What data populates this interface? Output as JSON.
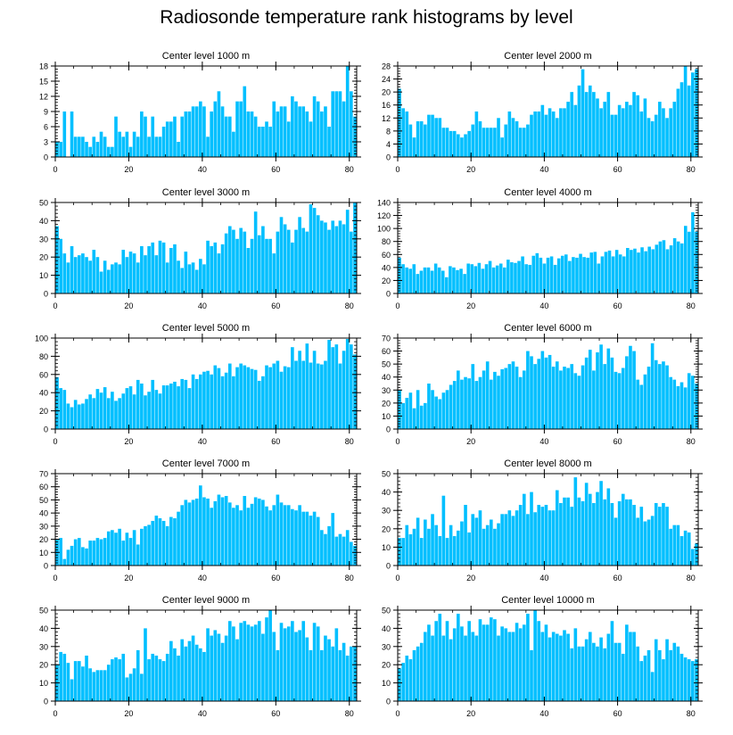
{
  "title": "Radiosonde temperature rank histograms by level",
  "colors": {
    "bar": "#00BFFF",
    "axis": "#000000",
    "background": "#FFFFFF"
  },
  "chart_data": [
    {
      "type": "bar",
      "title": "Center level 1000 m",
      "xlim": [
        0,
        82
      ],
      "ylim": [
        0,
        18
      ],
      "xticks": [
        0,
        20,
        40,
        60,
        80
      ],
      "yticks": [
        0,
        3,
        6,
        9,
        12,
        15,
        18
      ],
      "values": [
        3,
        3,
        9,
        0,
        9,
        4,
        4,
        4,
        3,
        2,
        4,
        3,
        5,
        4,
        2,
        2,
        8,
        5,
        4,
        5,
        2,
        5,
        4,
        9,
        8,
        4,
        8,
        4,
        4,
        6,
        7,
        7,
        8,
        3,
        8,
        9,
        9,
        10,
        10,
        11,
        10,
        4,
        9,
        11,
        13,
        10,
        8,
        8,
        5,
        11,
        11,
        14,
        9,
        9,
        8,
        6,
        6,
        7,
        6,
        11,
        9,
        10,
        10,
        7,
        12,
        11,
        10,
        10,
        9,
        7,
        12,
        11,
        9,
        10,
        6,
        13,
        13,
        13,
        11,
        18,
        13,
        8
      ]
    },
    {
      "type": "bar",
      "title": "Center level 2000 m",
      "xlim": [
        0,
        82
      ],
      "ylim": [
        0,
        28
      ],
      "xticks": [
        0,
        20,
        40,
        60,
        80
      ],
      "yticks": [
        0,
        4,
        8,
        12,
        16,
        20,
        24,
        28
      ],
      "values": [
        21,
        15,
        14,
        10,
        6,
        11,
        11,
        10,
        13,
        13,
        12,
        12,
        9,
        9,
        8,
        8,
        7,
        6,
        7,
        8,
        10,
        14,
        11,
        9,
        9,
        9,
        9,
        12,
        6,
        10,
        14,
        12,
        11,
        9,
        9,
        10,
        13,
        14,
        14,
        16,
        13,
        15,
        14,
        12,
        15,
        15,
        17,
        20,
        16,
        22,
        27,
        20,
        22,
        20,
        18,
        15,
        17,
        20,
        13,
        13,
        16,
        15,
        17,
        16,
        20,
        19,
        14,
        18,
        12,
        11,
        13,
        17,
        15,
        12,
        15,
        17,
        21,
        23,
        28,
        22,
        26,
        27
      ]
    },
    {
      "type": "bar",
      "title": "Center level 3000 m",
      "xlim": [
        0,
        82
      ],
      "ylim": [
        0,
        50
      ],
      "xticks": [
        0,
        20,
        40,
        60,
        80
      ],
      "yticks": [
        0,
        10,
        20,
        30,
        40,
        50
      ],
      "values": [
        37,
        30,
        22,
        17,
        26,
        20,
        21,
        22,
        20,
        18,
        24,
        20,
        12,
        18,
        13,
        16,
        17,
        16,
        24,
        20,
        23,
        22,
        17,
        26,
        21,
        26,
        28,
        21,
        29,
        28,
        17,
        25,
        27,
        18,
        14,
        23,
        16,
        17,
        13,
        19,
        16,
        29,
        26,
        28,
        22,
        27,
        33,
        37,
        35,
        30,
        36,
        34,
        25,
        30,
        45,
        32,
        37,
        30,
        30,
        22,
        34,
        42,
        38,
        35,
        28,
        35,
        42,
        36,
        34,
        49,
        47,
        43,
        40,
        39,
        35,
        40,
        37,
        40,
        38,
        46,
        34,
        50
      ]
    },
    {
      "type": "bar",
      "title": "Center level 4000 m",
      "xlim": [
        0,
        82
      ],
      "ylim": [
        0,
        140
      ],
      "xticks": [
        0,
        20,
        40,
        60,
        80
      ],
      "yticks": [
        0,
        20,
        40,
        60,
        80,
        100,
        120,
        140
      ],
      "values": [
        55,
        45,
        40,
        38,
        45,
        30,
        35,
        40,
        40,
        35,
        46,
        40,
        35,
        25,
        42,
        40,
        36,
        38,
        30,
        46,
        45,
        42,
        47,
        38,
        45,
        50,
        40,
        43,
        46,
        40,
        52,
        48,
        47,
        50,
        57,
        45,
        44,
        58,
        62,
        55,
        46,
        55,
        57,
        44,
        54,
        58,
        60,
        50,
        56,
        55,
        61,
        56,
        55,
        63,
        64,
        46,
        57,
        64,
        66,
        57,
        67,
        60,
        57,
        70,
        67,
        69,
        63,
        71,
        65,
        72,
        68,
        75,
        80,
        82,
        68,
        74,
        85,
        80,
        77,
        104,
        95,
        125,
        95
      ]
    },
    {
      "type": "bar",
      "title": "Center level 5000 m",
      "xlim": [
        0,
        82
      ],
      "ylim": [
        0,
        100
      ],
      "xticks": [
        0,
        20,
        40,
        60,
        80
      ],
      "yticks": [
        0,
        20,
        40,
        60,
        80,
        100
      ],
      "values": [
        57,
        45,
        43,
        28,
        24,
        32,
        27,
        28,
        33,
        38,
        34,
        44,
        40,
        46,
        34,
        41,
        31,
        34,
        39,
        45,
        47,
        38,
        54,
        50,
        37,
        41,
        54,
        43,
        39,
        48,
        48,
        50,
        52,
        47,
        55,
        54,
        45,
        60,
        55,
        60,
        63,
        64,
        60,
        70,
        67,
        58,
        62,
        72,
        58,
        68,
        72,
        70,
        68,
        66,
        65,
        53,
        58,
        70,
        68,
        72,
        75,
        63,
        69,
        68,
        90,
        75,
        86,
        75,
        94,
        73,
        86,
        72,
        71,
        75,
        98,
        90,
        93,
        72,
        86,
        99,
        93,
        82
      ]
    },
    {
      "type": "bar",
      "title": "Center level 6000 m",
      "xlim": [
        0,
        82
      ],
      "ylim": [
        0,
        70
      ],
      "xticks": [
        0,
        20,
        40,
        60,
        80
      ],
      "yticks": [
        0,
        10,
        20,
        30,
        40,
        50,
        60,
        70
      ],
      "values": [
        30,
        20,
        24,
        28,
        16,
        30,
        18,
        20,
        35,
        30,
        25,
        23,
        28,
        30,
        34,
        37,
        45,
        38,
        40,
        39,
        50,
        37,
        40,
        45,
        52,
        38,
        44,
        41,
        46,
        47,
        50,
        52,
        48,
        40,
        45,
        60,
        56,
        50,
        54,
        60,
        55,
        57,
        48,
        52,
        45,
        48,
        47,
        50,
        43,
        41,
        49,
        55,
        61,
        45,
        59,
        65,
        50,
        62,
        55,
        44,
        43,
        47,
        56,
        64,
        60,
        38,
        34,
        42,
        48,
        66,
        53,
        50,
        52,
        49,
        40,
        38,
        33,
        36,
        32,
        43,
        41,
        35
      ]
    },
    {
      "type": "bar",
      "title": "Center level 7000 m",
      "xlim": [
        0,
        82
      ],
      "ylim": [
        0,
        70
      ],
      "xticks": [
        0,
        20,
        40,
        60,
        80
      ],
      "yticks": [
        0,
        10,
        20,
        30,
        40,
        50,
        60,
        70
      ],
      "values": [
        20,
        21,
        5,
        12,
        15,
        20,
        21,
        14,
        13,
        19,
        19,
        21,
        20,
        21,
        26,
        27,
        25,
        28,
        19,
        25,
        21,
        27,
        16,
        28,
        30,
        31,
        34,
        38,
        36,
        34,
        30,
        37,
        36,
        41,
        46,
        50,
        48,
        50,
        51,
        61,
        52,
        51,
        44,
        49,
        54,
        52,
        53,
        48,
        44,
        46,
        42,
        53,
        44,
        47,
        52,
        51,
        50,
        45,
        42,
        46,
        54,
        48,
        46,
        46,
        43,
        42,
        46,
        41,
        41,
        38,
        41,
        37,
        27,
        24,
        30,
        40,
        22,
        24,
        22,
        27,
        18,
        15
      ]
    },
    {
      "type": "bar",
      "title": "Center level 8000 m",
      "xlim": [
        0,
        82
      ],
      "ylim": [
        0,
        50
      ],
      "xticks": [
        0,
        20,
        40,
        60,
        80
      ],
      "yticks": [
        0,
        10,
        20,
        30,
        40,
        50
      ],
      "values": [
        15,
        15,
        22,
        17,
        20,
        26,
        15,
        25,
        20,
        28,
        22,
        16,
        38,
        15,
        22,
        16,
        19,
        24,
        33,
        18,
        28,
        26,
        30,
        20,
        22,
        25,
        20,
        23,
        28,
        28,
        30,
        27,
        30,
        33,
        39,
        28,
        40,
        29,
        33,
        32,
        33,
        30,
        30,
        41,
        34,
        37,
        37,
        32,
        48,
        37,
        35,
        45,
        39,
        34,
        40,
        46,
        36,
        42,
        34,
        26,
        35,
        39,
        36,
        36,
        33,
        26,
        32,
        24,
        25,
        27,
        34,
        32,
        34,
        32,
        20,
        22,
        22,
        16,
        19,
        18,
        9,
        12
      ]
    },
    {
      "type": "bar",
      "title": "Center level 9000 m",
      "xlim": [
        0,
        82
      ],
      "ylim": [
        0,
        50
      ],
      "xticks": [
        0,
        20,
        40,
        60,
        80
      ],
      "yticks": [
        0,
        10,
        20,
        30,
        40,
        50
      ],
      "values": [
        20,
        27,
        26,
        21,
        12,
        22,
        22,
        19,
        25,
        18,
        16,
        17,
        17,
        17,
        20,
        23,
        24,
        23,
        26,
        13,
        15,
        18,
        28,
        15,
        40,
        23,
        26,
        25,
        23,
        22,
        26,
        33,
        29,
        25,
        34,
        30,
        33,
        36,
        31,
        29,
        27,
        40,
        36,
        39,
        37,
        32,
        36,
        44,
        41,
        34,
        43,
        44,
        42,
        41,
        42,
        44,
        37,
        46,
        50,
        38,
        28,
        43,
        40,
        41,
        44,
        38,
        39,
        44,
        35,
        28,
        43,
        41,
        28,
        36,
        34,
        30,
        40,
        28,
        32,
        25,
        30,
        30
      ]
    },
    {
      "type": "bar",
      "title": "Center level 10000 m",
      "xlim": [
        0,
        82
      ],
      "ylim": [
        0,
        50
      ],
      "xticks": [
        0,
        20,
        40,
        60,
        80
      ],
      "yticks": [
        0,
        10,
        20,
        30,
        40,
        50
      ],
      "values": [
        18,
        21,
        25,
        23,
        28,
        30,
        32,
        38,
        42,
        36,
        44,
        48,
        36,
        44,
        34,
        40,
        48,
        41,
        36,
        44,
        38,
        36,
        45,
        42,
        42,
        46,
        45,
        36,
        41,
        40,
        38,
        38,
        43,
        40,
        42,
        48,
        28,
        50,
        44,
        38,
        42,
        35,
        38,
        37,
        36,
        39,
        37,
        29,
        40,
        30,
        30,
        34,
        38,
        32,
        30,
        35,
        29,
        37,
        44,
        32,
        32,
        26,
        42,
        38,
        38,
        30,
        22,
        25,
        28,
        16,
        34,
        28,
        23,
        34,
        28,
        32,
        30,
        26,
        24,
        23,
        22,
        23
      ]
    }
  ]
}
